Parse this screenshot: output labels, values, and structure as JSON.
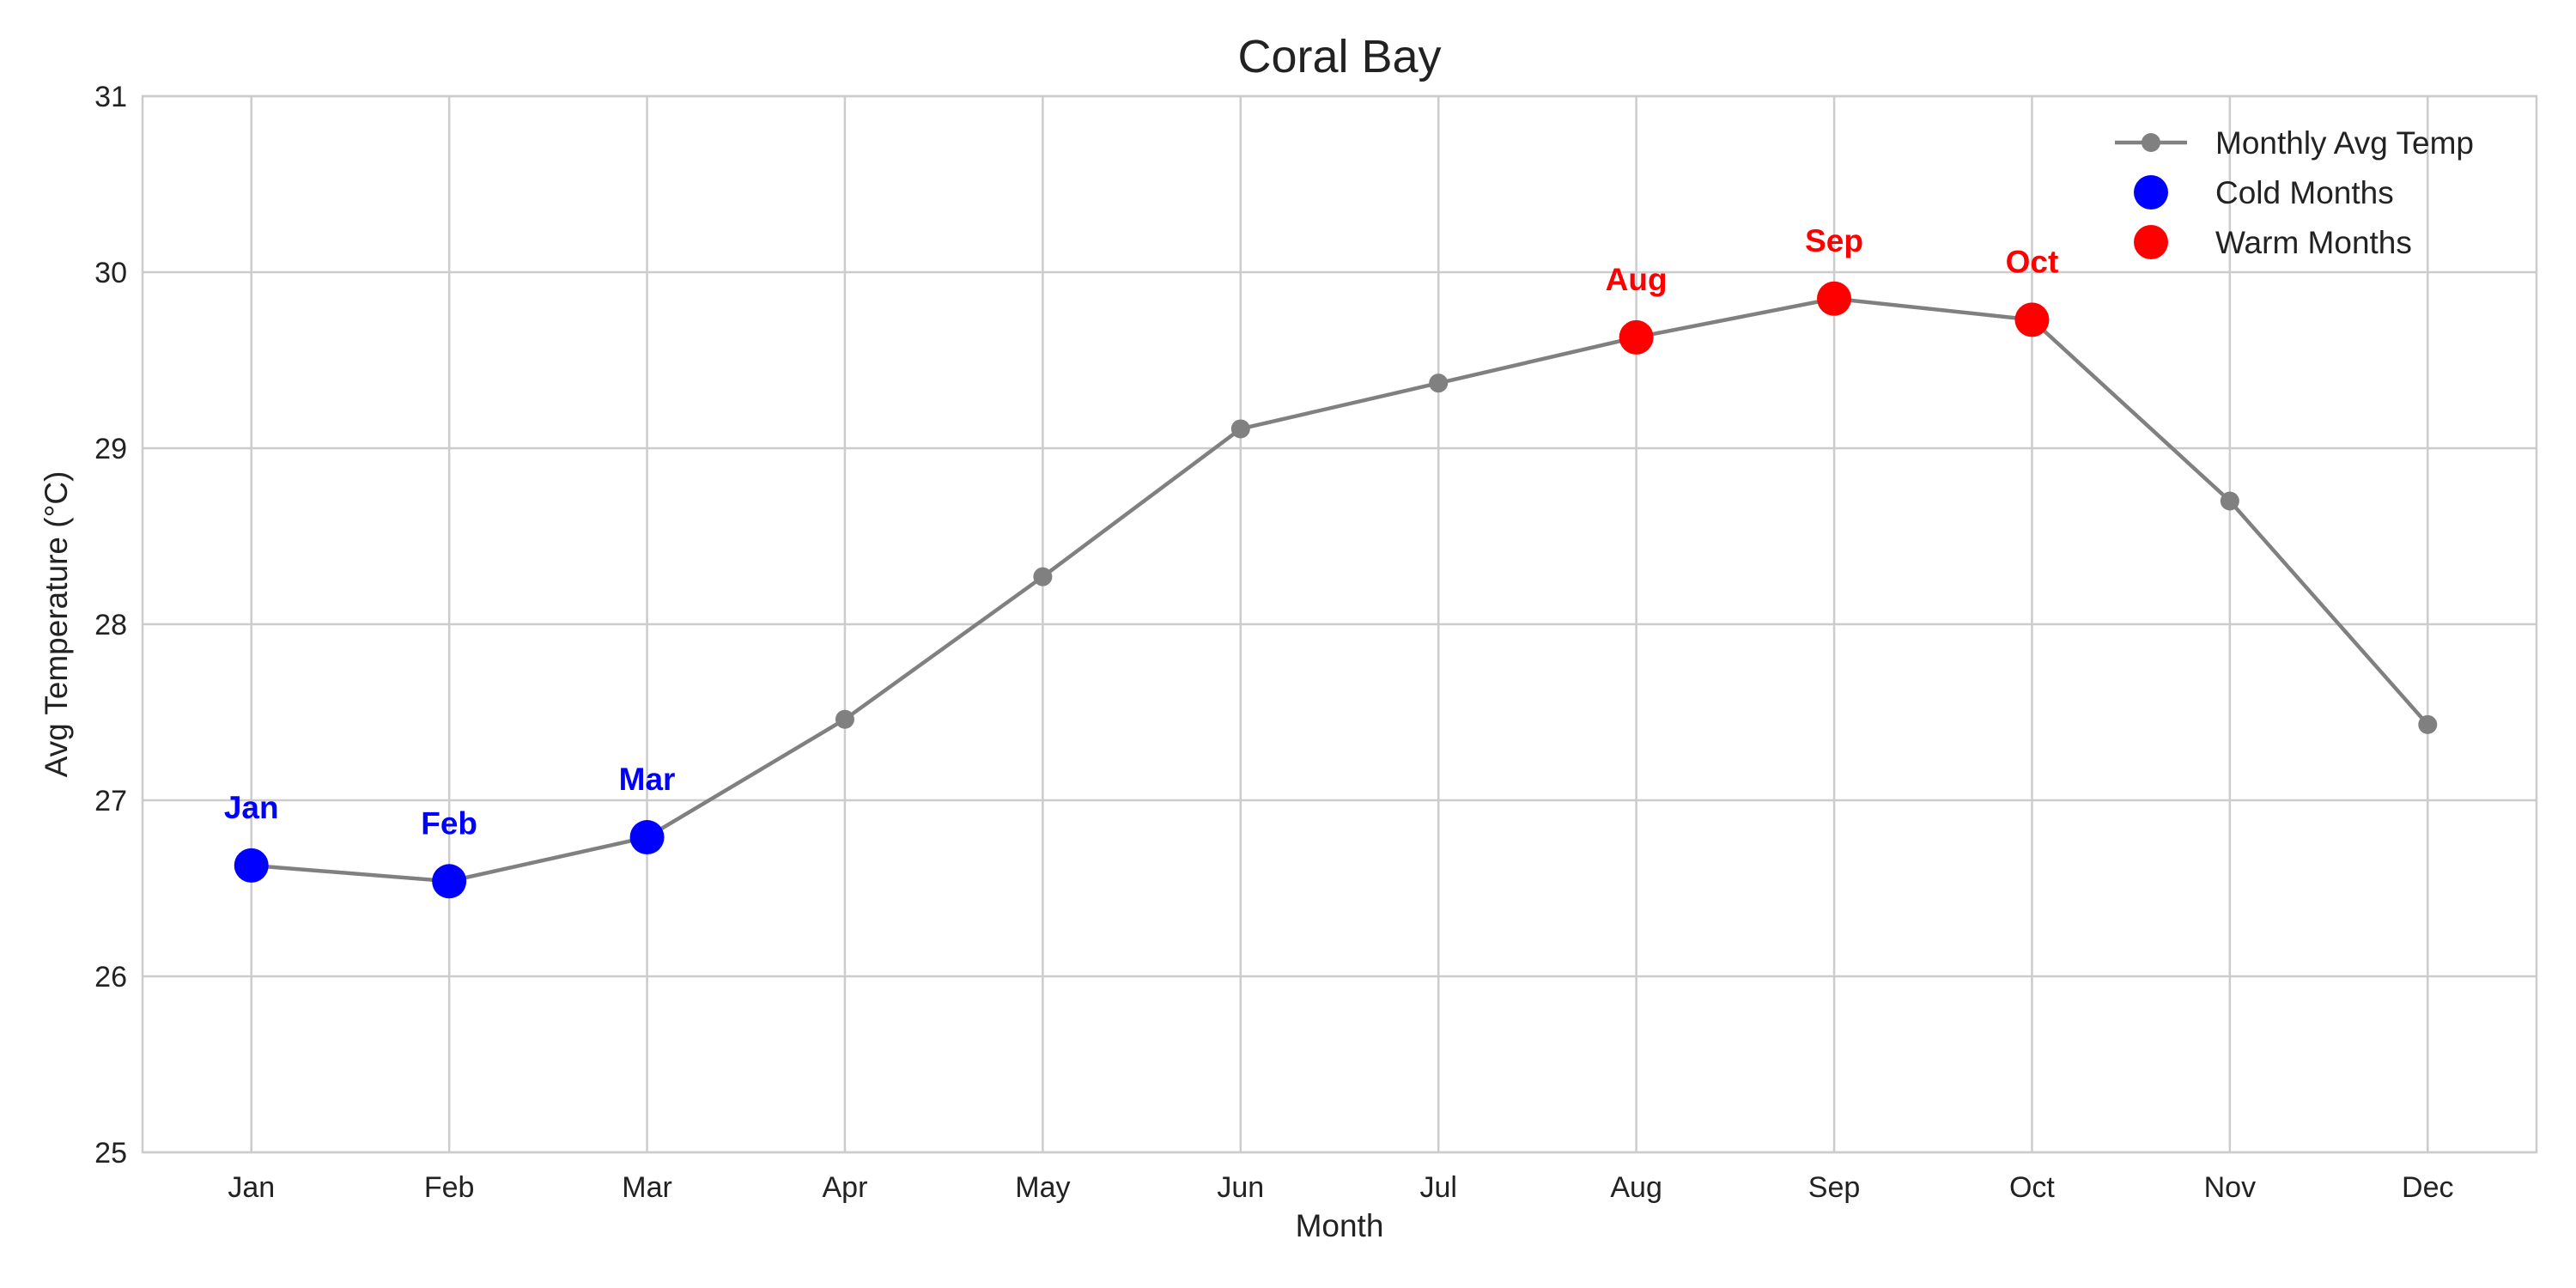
{
  "chart_data": {
    "type": "line",
    "title": "Coral Bay",
    "xlabel": "Month",
    "ylabel": "Avg Temperature (°C)",
    "categories": [
      "Jan",
      "Feb",
      "Mar",
      "Apr",
      "May",
      "Jun",
      "Jul",
      "Aug",
      "Sep",
      "Oct",
      "Nov",
      "Dec"
    ],
    "ylim": [
      25,
      31
    ],
    "yticks": [
      25,
      26,
      27,
      28,
      29,
      30,
      31
    ],
    "grid": true,
    "legend_position": "top-right",
    "series": [
      {
        "name": "Monthly Avg Temp",
        "color": "#808080",
        "values": [
          26.63,
          26.54,
          26.79,
          27.46,
          28.27,
          29.11,
          29.37,
          29.63,
          29.85,
          29.73,
          28.7,
          27.43
        ]
      }
    ],
    "highlight_groups": [
      {
        "name": "Cold Months",
        "color": "#0000ff",
        "months": [
          "Jan",
          "Feb",
          "Mar"
        ]
      },
      {
        "name": "Warm Months",
        "color": "#ff0000",
        "months": [
          "Aug",
          "Sep",
          "Oct"
        ]
      }
    ]
  }
}
